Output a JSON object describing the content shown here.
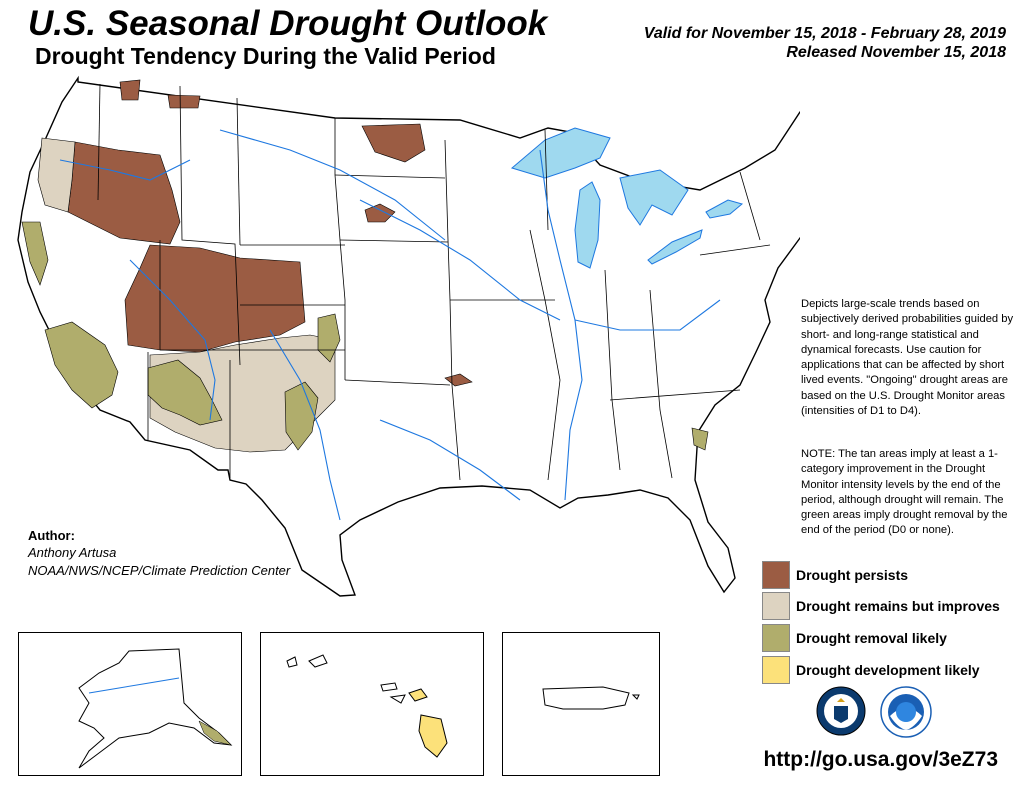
{
  "header": {
    "title": "U.S. Seasonal Drought Outlook",
    "subtitle": "Drought Tendency During the Valid Period",
    "valid": "Valid for November 15, 2018 - February 28, 2019",
    "released": "Released November 15, 2018"
  },
  "description": "Depicts large-scale trends based on subjectively derived probabilities guided by short- and long-range statistical and dynamical forecasts. Use caution for applications that can be affected by short lived events. \"Ongoing\" drought areas are based on the U.S. Drought Monitor areas (intensities of D1 to D4).",
  "note": "NOTE: The tan areas imply at least a 1-category improvement in the Drought Monitor intensity levels by the end of the period, although drought will remain. The green areas imply drought removal by the end of the period (D0 or none).",
  "author": {
    "label": "Author:",
    "name": "Anthony Artusa",
    "org": "NOAA/NWS/NCEP/Climate Prediction Center"
  },
  "legend": [
    {
      "label": "Drought persists",
      "color": "#9b5c43"
    },
    {
      "label": "Drought remains but improves",
      "color": "#ddd3c1"
    },
    {
      "label": "Drought removal likely",
      "color": "#b0ad6c"
    },
    {
      "label": "Drought development likely",
      "color": "#fce17a"
    }
  ],
  "url": "http://go.usa.gov/3eZ73",
  "colors": {
    "persists": "#9b5c43",
    "improves": "#ddd3c1",
    "removal": "#b0ad6c",
    "development": "#fce17a",
    "lakes": "#9fd9ef",
    "rivers": "#1e78e0",
    "state_lines": "#000000"
  },
  "icons": [
    "doc-seal-icon",
    "noaa-logo-icon"
  ]
}
